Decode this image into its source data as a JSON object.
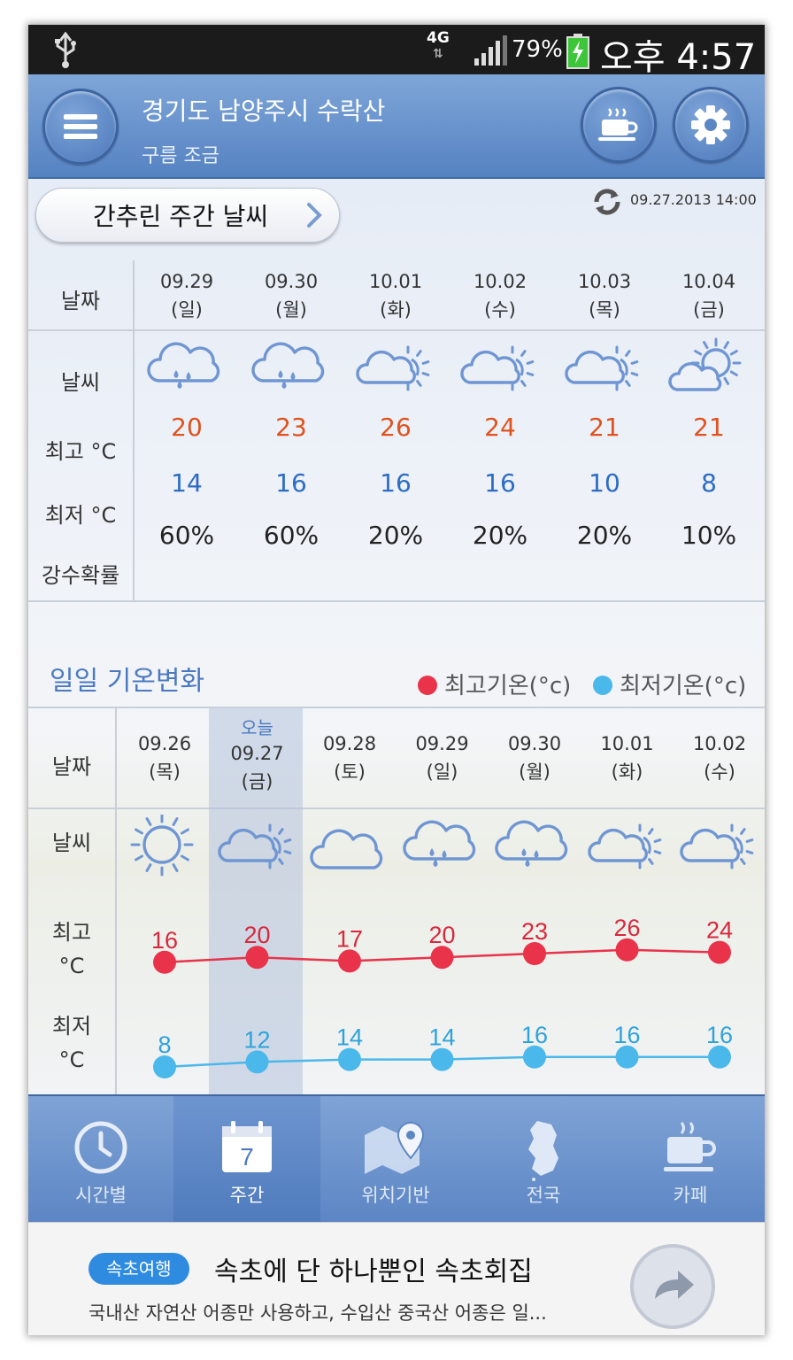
{
  "status_bar": {
    "network": "4G",
    "battery": "79%",
    "time": "오후 4:57"
  },
  "header": {
    "location": "경기도 남양주시 수락산",
    "condition": "구름 조금"
  },
  "summary": {
    "button_label": "간추린 주간 날씨",
    "updated": "09.27.2013 14:00"
  },
  "weekly": {
    "labels": {
      "date": "날짜",
      "weather": "날씨",
      "high": "최고 °C",
      "low": "최저 °C",
      "rain": "강수확률"
    },
    "days": [
      {
        "date": "09.29",
        "dow": "(일)",
        "icon": "rain-cloud-icon",
        "high": "20",
        "low": "14",
        "rain": "60%"
      },
      {
        "date": "09.30",
        "dow": "(월)",
        "icon": "rain-cloud-icon",
        "high": "23",
        "low": "16",
        "rain": "60%"
      },
      {
        "date": "10.01",
        "dow": "(화)",
        "icon": "cloudy-sun-icon",
        "high": "26",
        "low": "16",
        "rain": "20%"
      },
      {
        "date": "10.02",
        "dow": "(수)",
        "icon": "cloudy-sun-icon",
        "high": "24",
        "low": "16",
        "rain": "20%"
      },
      {
        "date": "10.03",
        "dow": "(목)",
        "icon": "cloudy-sun-icon",
        "high": "21",
        "low": "10",
        "rain": "20%"
      },
      {
        "date": "10.04",
        "dow": "(금)",
        "icon": "partly-cloudy-icon",
        "high": "21",
        "low": "8",
        "rain": "10%"
      }
    ]
  },
  "trend": {
    "title": "일일 기온변화",
    "legend_high": "최고기온(°c)",
    "legend_low": "최저기온(°c)",
    "labels": {
      "date": "날짜",
      "weather": "날씨",
      "high": "최고",
      "low": "최저",
      "unit": "°C"
    },
    "today_tag": "오늘",
    "colors": {
      "high": "#e8334a",
      "low": "#4ab8ea"
    }
  },
  "chart_data": {
    "type": "line",
    "categories": [
      "09.26 (목)",
      "09.27 (금)",
      "09.28 (토)",
      "09.29 (일)",
      "09.30 (월)",
      "10.01 (화)",
      "10.02 (수)"
    ],
    "series": [
      {
        "name": "최고기온(°c)",
        "values": [
          16,
          20,
          17,
          20,
          23,
          26,
          24
        ]
      },
      {
        "name": "최저기온(°c)",
        "values": [
          8,
          12,
          14,
          14,
          16,
          16,
          16
        ]
      }
    ],
    "days": [
      {
        "date": "09.26",
        "dow": "(목)",
        "icon": "sun-icon"
      },
      {
        "date": "09.27",
        "dow": "(금)",
        "icon": "cloudy-sun-icon"
      },
      {
        "date": "09.28",
        "dow": "(토)",
        "icon": "cloud-icon"
      },
      {
        "date": "09.29",
        "dow": "(일)",
        "icon": "rain-cloud-icon"
      },
      {
        "date": "09.30",
        "dow": "(월)",
        "icon": "rain-cloud-icon"
      },
      {
        "date": "10.01",
        "dow": "(화)",
        "icon": "cloudy-sun-icon"
      },
      {
        "date": "10.02",
        "dow": "(수)",
        "icon": "cloudy-sun-icon"
      }
    ]
  },
  "nav": {
    "items": [
      {
        "label": "시간별",
        "icon": "clock-icon"
      },
      {
        "label": "주간",
        "icon": "calendar-icon",
        "calendar_day": "7"
      },
      {
        "label": "위치기반",
        "icon": "map-pin-icon"
      },
      {
        "label": "전국",
        "icon": "korea-map-icon"
      },
      {
        "label": "카페",
        "icon": "coffee-icon"
      }
    ]
  },
  "ad": {
    "tag": "속초여행",
    "title": "속초에 단 하나뿐인 속초회집",
    "description": "국내산 자연산 어종만 사용하고, 수입산 중국산 어종은 일..."
  }
}
